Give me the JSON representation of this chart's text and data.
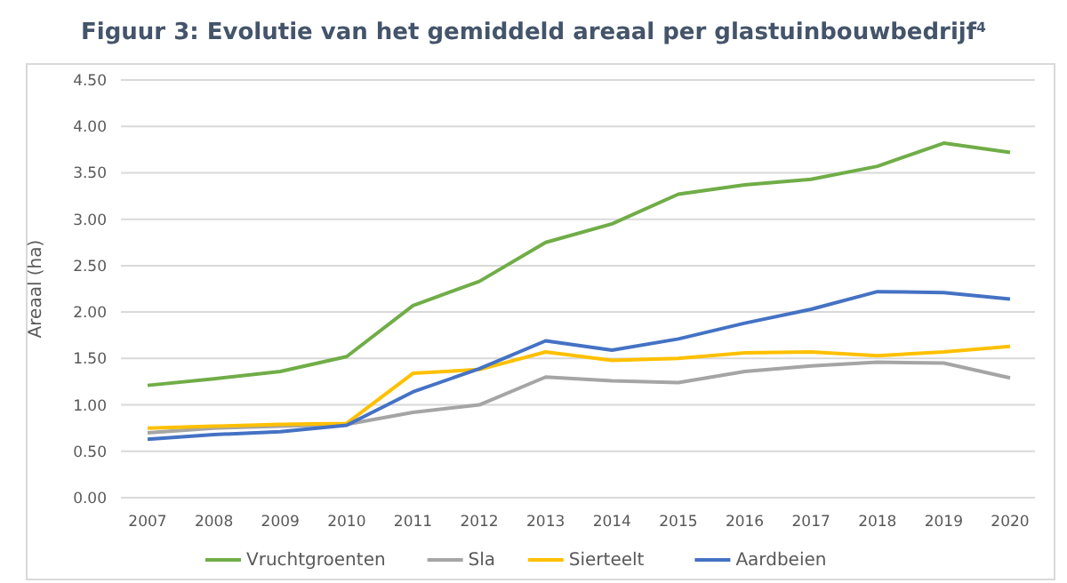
{
  "chart_data": {
    "type": "line",
    "title": "Figuur 3: Evolutie van het gemiddeld areaal per glastuinbouwbedrijf$^{4}$",
    "ylabel": "Areaal (ha)",
    "categories": [
      "2007",
      "2008",
      "2009",
      "2010",
      "2011",
      "2012",
      "2013",
      "2014",
      "2015",
      "2016",
      "2017",
      "2018",
      "2019",
      "2020"
    ],
    "series": [
      {
        "name": "Vruchtgroenten",
        "color": "#70ad47",
        "values": [
          1.21,
          1.28,
          1.36,
          1.52,
          2.07,
          2.33,
          2.75,
          2.95,
          3.27,
          3.37,
          3.43,
          3.57,
          3.82,
          3.72
        ]
      },
      {
        "name": "Sla",
        "color": "#a5a5a5",
        "values": [
          0.7,
          0.75,
          0.77,
          0.79,
          0.92,
          1.0,
          1.3,
          1.26,
          1.24,
          1.36,
          1.42,
          1.46,
          1.45,
          1.29
        ]
      },
      {
        "name": "Sierteelt",
        "color": "#ffc000",
        "values": [
          0.75,
          0.77,
          0.79,
          0.8,
          1.34,
          1.38,
          1.57,
          1.48,
          1.5,
          1.56,
          1.57,
          1.53,
          1.57,
          1.63
        ]
      },
      {
        "name": "Aardbeien",
        "color": "#4472c4",
        "values": [
          0.63,
          0.68,
          0.71,
          0.78,
          1.14,
          1.39,
          1.69,
          1.59,
          1.71,
          1.88,
          2.03,
          2.22,
          2.21,
          2.14
        ]
      }
    ],
    "ylim": [
      0,
      4.5
    ],
    "yticks": [
      {
        "value": 0,
        "label": "0.00"
      },
      {
        "value": 0.5,
        "label": "0.50"
      },
      {
        "value": 1,
        "label": "1.00"
      },
      {
        "value": 1.5,
        "label": "1.50"
      },
      {
        "value": 2,
        "label": "2.00"
      },
      {
        "value": 2.5,
        "label": "2.50"
      },
      {
        "value": 3,
        "label": "3.00"
      },
      {
        "value": 3.5,
        "label": "3.50"
      },
      {
        "value": 4,
        "label": "4.00"
      },
      {
        "value": 4.5,
        "label": "4.50"
      }
    ],
    "grid": "y",
    "legend": "bottom",
    "marker": "none",
    "line_style": "solid"
  }
}
